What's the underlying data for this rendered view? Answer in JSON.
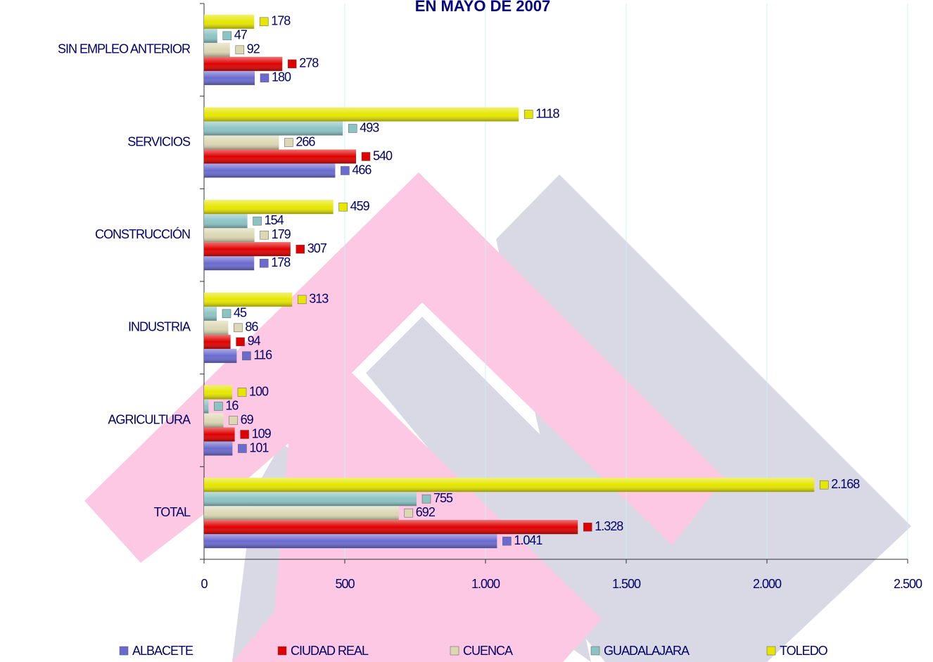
{
  "chart_data": {
    "type": "bar",
    "orientation": "horizontal",
    "title": "EN MAYO DE 2007",
    "categories": [
      "TOTAL",
      "AGRICULTURA",
      "INDUSTRIA",
      "CONSTRUCCIÓN",
      "SERVICIOS",
      "SIN EMPLEO ANTERIOR"
    ],
    "series": [
      {
        "name": "ALBACETE",
        "color": "#6a6acf",
        "values": [
          1041,
          101,
          116,
          178,
          466,
          180
        ],
        "value_labels": [
          "1.041",
          "101",
          "116",
          "178",
          "466",
          "180"
        ]
      },
      {
        "name": "CIUDAD REAL",
        "color": "#e00000",
        "values": [
          1328,
          109,
          94,
          307,
          540,
          278
        ],
        "value_labels": [
          "1.328",
          "109",
          "94",
          "307",
          "540",
          "278"
        ]
      },
      {
        "name": "CUENCA",
        "color": "#dcd8b4",
        "values": [
          692,
          69,
          86,
          179,
          266,
          92
        ],
        "value_labels": [
          "692",
          "69",
          "86",
          "179",
          "266",
          "92"
        ]
      },
      {
        "name": "GUADALAJARA",
        "color": "#8cc4c4",
        "values": [
          755,
          16,
          45,
          154,
          493,
          47
        ],
        "value_labels": [
          "755",
          "16",
          "45",
          "154",
          "493",
          "47"
        ]
      },
      {
        "name": "TOLEDO",
        "color": "#e6e600",
        "values": [
          2168,
          100,
          313,
          459,
          1118,
          178
        ],
        "value_labels": [
          "2.168",
          "100",
          "313",
          "459",
          "1118",
          "178"
        ]
      }
    ],
    "xlim": [
      0,
      2500
    ],
    "xticks": [
      0,
      500,
      {
        "value": 1000,
        "label": "1.000"
      },
      {
        "value": 1500,
        "label": "1.500"
      },
      {
        "value": 2000,
        "label": "2.000"
      },
      {
        "value": 2500,
        "label": "2.500"
      }
    ],
    "grid": true,
    "legend": "bottom"
  }
}
